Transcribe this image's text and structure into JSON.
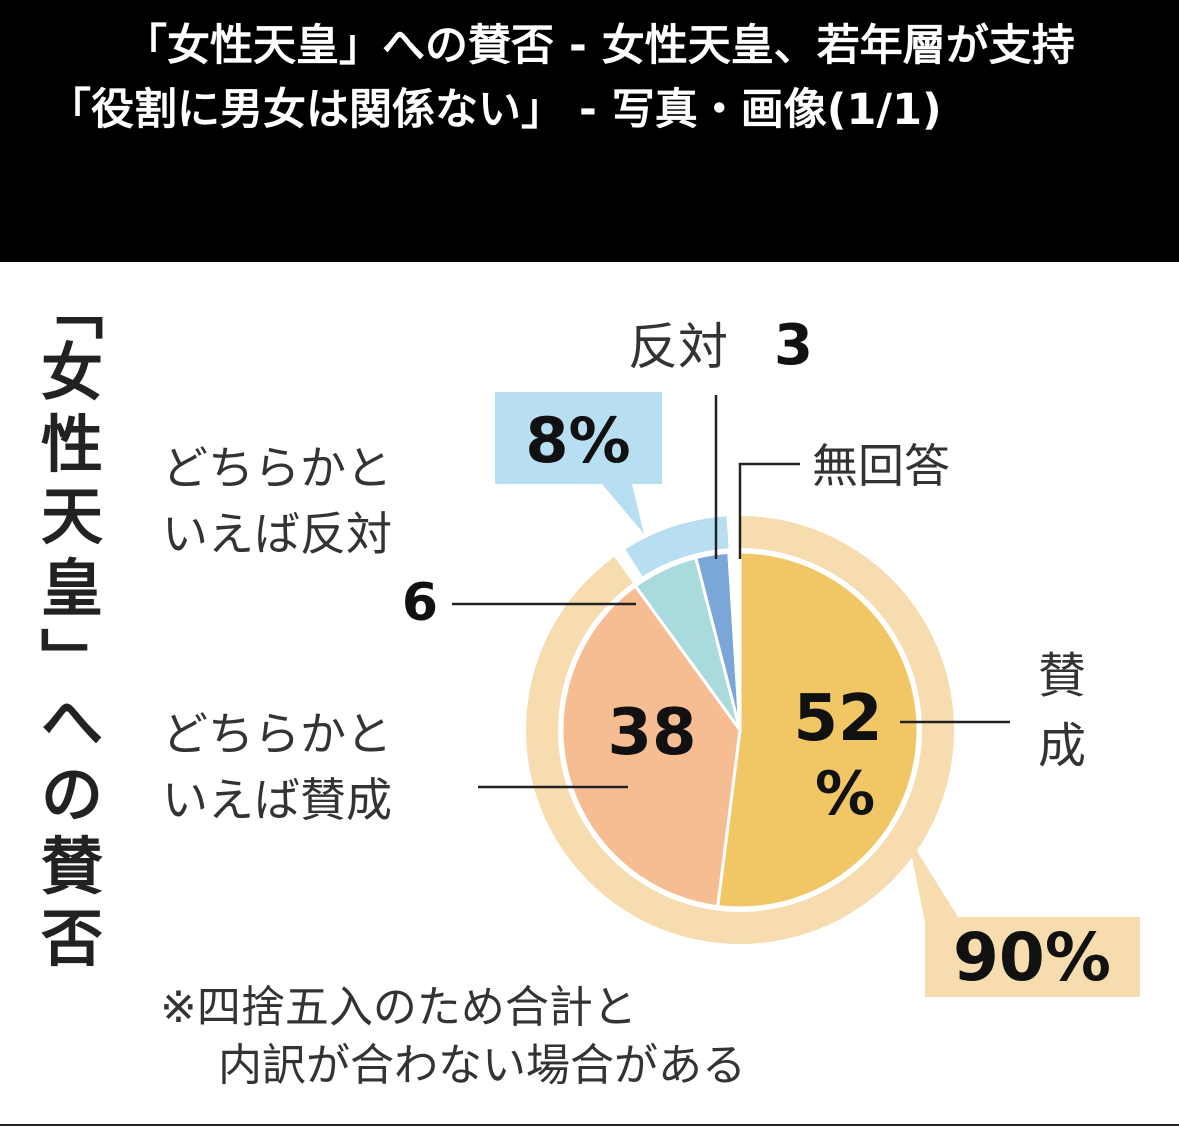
{
  "header": {
    "title": "「女性天皇」への賛否 - 女性天皇、若年層が支持　「役割に男女は関係ない」 - 写真・画像(1/1)"
  },
  "chart_data": {
    "type": "pie",
    "title_vertical": "「女性天皇」への賛否",
    "inner_slices": [
      {
        "name": "賛成",
        "value": 52,
        "label": "52",
        "unit": "%",
        "color": "#F1C766"
      },
      {
        "name": "どちらかといえば賛成",
        "value": 38,
        "label": "38",
        "color": "#F7BD92"
      },
      {
        "name": "どちらかといえば反対",
        "value": 6,
        "label": "6",
        "color": "#A9DADC"
      },
      {
        "name": "反対",
        "value": 3,
        "label": "3",
        "color": "#7AA7D8"
      },
      {
        "name": "無回答",
        "value": 1,
        "label": "",
        "color": "#FFFFFF"
      }
    ],
    "outer_ring": [
      {
        "label": "90%",
        "value": 90,
        "color": "#F6DCAE"
      },
      {
        "label": "8%",
        "value": 8,
        "color": "#B7DFF1"
      }
    ],
    "labels": {
      "approve": "賛成",
      "somewhat_approve_line1": "どちらかと",
      "somewhat_approve_line2": "いえば賛成",
      "somewhat_oppose_line1": "どちらかと",
      "somewhat_oppose_line2": "いえば反対",
      "oppose": "反対",
      "no_answer": "無回答",
      "approve_value": "52",
      "approve_unit": "%",
      "somewhat_approve_value": "38",
      "somewhat_oppose_value": "6",
      "oppose_value": "3",
      "total_approve": "90%",
      "total_oppose": "8%"
    },
    "note_line1": "※四捨五入のため合計と",
    "note_line2": "内訳が合わない場合がある"
  }
}
